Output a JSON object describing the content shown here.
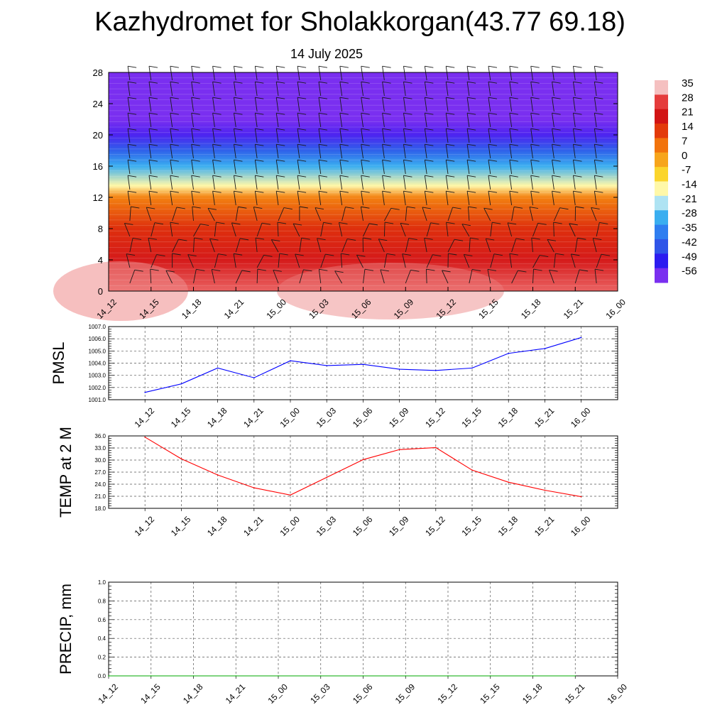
{
  "header": {
    "title": "Kazhydromet for Sholakkorgan(43.77 69.18)",
    "date": "14 July 2025"
  },
  "chart_data": [
    {
      "id": "profile",
      "type": "heatmap",
      "title": "",
      "xlabel": "",
      "ylabel": "",
      "x_tick_labels": [
        "14_12",
        "14_15",
        "14_18",
        "14_21",
        "15_00",
        "15_03",
        "15_06",
        "15_09",
        "15_12",
        "15_15",
        "15_18",
        "15_21",
        "16_00"
      ],
      "y_ticks": [
        0,
        4,
        8,
        12,
        16,
        20,
        24,
        28
      ],
      "ylim": [
        0,
        28
      ],
      "color_scale": {
        "labels": [
          "35",
          "28",
          "21",
          "14",
          "7",
          "0",
          "-7",
          "-14",
          "-21",
          "-28",
          "-35",
          "-42",
          "-49",
          "-56"
        ],
        "colors": [
          "#f5c0c0",
          "#e53c3c",
          "#d21414",
          "#e33a0a",
          "#f2730c",
          "#f7a51b",
          "#fbd52c",
          "#fff8a8",
          "#aee3f3",
          "#3aaef0",
          "#2f7ef0",
          "#2f55e8",
          "#2c1cf0",
          "#7a2ff0"
        ]
      },
      "temperature_profile": {
        "levels": [
          0,
          4,
          8,
          12,
          13.5,
          16,
          18,
          20,
          22,
          24,
          28
        ],
        "values": [
          30,
          22,
          16,
          5,
          -14,
          -28,
          -40,
          -52,
          -56,
          -62,
          -64
        ]
      },
      "wind_barbs": true
    },
    {
      "id": "pmsl",
      "type": "line",
      "ylabel": "PMSL",
      "x_tick_labels": [
        "14_12",
        "14_15",
        "14_18",
        "14_21",
        "15_00",
        "15_03",
        "15_06",
        "15_09",
        "15_12",
        "15_15",
        "15_18",
        "15_21",
        "16_00"
      ],
      "y_ticks": [
        "1001.0",
        "1002.0",
        "1003.0",
        "1004.0",
        "1005.0",
        "1006.0",
        "1007.0"
      ],
      "ylim": [
        1001,
        1007
      ],
      "grid": true,
      "series": [
        {
          "color": "#0000ff",
          "values": [
            1001.6,
            1002.3,
            1003.6,
            1002.8,
            1004.2,
            1003.8,
            1003.9,
            1003.5,
            1003.4,
            1003.6,
            1004.8,
            1005.2,
            1006.1
          ]
        }
      ]
    },
    {
      "id": "temp2m",
      "type": "line",
      "ylabel": "TEMP at 2 M",
      "x_tick_labels": [
        "14_12",
        "14_15",
        "14_18",
        "14_21",
        "15_00",
        "15_03",
        "15_06",
        "15_09",
        "15_12",
        "15_15",
        "15_18",
        "15_21",
        "16_00"
      ],
      "y_ticks": [
        "18.0",
        "21.0",
        "24.0",
        "27.0",
        "30.0",
        "33.0",
        "36.0"
      ],
      "ylim": [
        18,
        36
      ],
      "grid": true,
      "series": [
        {
          "color": "#ff0000",
          "values": [
            35.7,
            30.3,
            26.3,
            23.1,
            21.3,
            25.7,
            30.1,
            32.6,
            33.1,
            27.5,
            24.5,
            22.5,
            20.9
          ]
        }
      ]
    },
    {
      "id": "precip",
      "type": "line",
      "ylabel": "PRECIP, mm",
      "x_tick_labels": [
        "14_12",
        "14_15",
        "14_18",
        "14_21",
        "15_00",
        "15_03",
        "15_06",
        "15_09",
        "15_12",
        "15_15",
        "15_18",
        "15_21",
        "16_00"
      ],
      "y_ticks": [
        "0.0",
        "0.2",
        "0.4",
        "0.6",
        "0.8",
        "1.0"
      ],
      "ylim": [
        0,
        1
      ],
      "grid": true,
      "series": [
        {
          "color": "#00aa00",
          "values": [
            0,
            0,
            0,
            0,
            0,
            0,
            0,
            0,
            0,
            0,
            0,
            0
          ]
        }
      ]
    }
  ]
}
